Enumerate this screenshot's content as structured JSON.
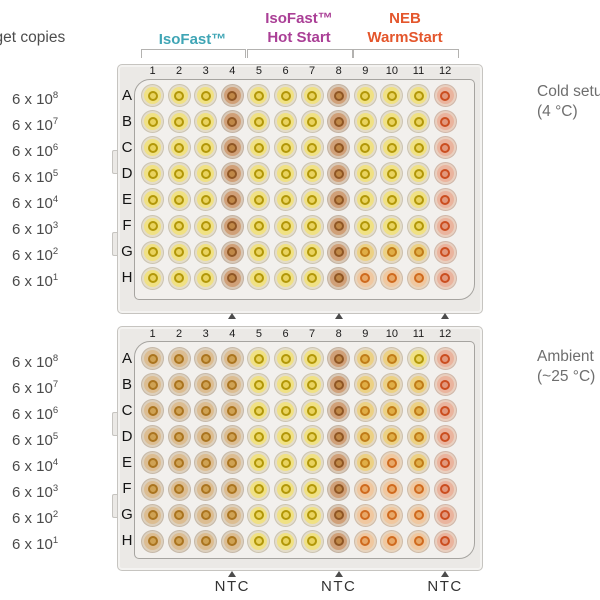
{
  "figure": {
    "target_copies_label": "Target copies",
    "groups": [
      {
        "id": "isofast",
        "label_lines": [
          "IsoFast™"
        ],
        "color": "#3fa5b5"
      },
      {
        "id": "isofast-hot-start",
        "label_lines": [
          "IsoFast™",
          "Hot Start"
        ],
        "color": "#aa3f96"
      },
      {
        "id": "neb-warmstart",
        "label_lines": [
          "NEB",
          "WarmStart"
        ],
        "color": "#e4562c"
      }
    ],
    "dilution_series": {
      "base": "6 x 10",
      "exponents": [
        "8",
        "7",
        "6",
        "5",
        "4",
        "3",
        "2",
        "1"
      ]
    },
    "ntc_label": "NTC",
    "ntc_columns": [
      4,
      8,
      12
    ]
  },
  "plates": [
    {
      "id": "cold-setup",
      "condition": {
        "line1": "Cold setup",
        "line2": "(4 °C)"
      },
      "column_labels": [
        "1",
        "2",
        "3",
        "4",
        "5",
        "6",
        "7",
        "8",
        "9",
        "10",
        "11",
        "12"
      ],
      "row_labels": [
        "A",
        "B",
        "C",
        "D",
        "E",
        "F",
        "G",
        "H"
      ],
      "wells": [
        "YYYBYYYBYYYR",
        "YYYBYYYBYYYR",
        "YYYBYYYBYYYR",
        "YYYBYYYBYYYR",
        "YYYBYYYBYYYR",
        "YYYBYYYBYYYR",
        "YYYBYYYBAAAR",
        "YYYBYYYBOOOR"
      ]
    },
    {
      "id": "ambient",
      "condition": {
        "line1": "Ambient",
        "line2": "(~25 °C)"
      },
      "column_labels": [
        "1",
        "2",
        "3",
        "4",
        "5",
        "6",
        "7",
        "8",
        "9",
        "10",
        "11",
        "12"
      ],
      "row_labels": [
        "A",
        "B",
        "C",
        "D",
        "E",
        "F",
        "G",
        "H"
      ],
      "wells": [
        "TTTTYYYBAAYR",
        "TTTTYYYBAAAR",
        "TTTTYYYBAAAR",
        "TTTTYYYBAAAR",
        "TTTTYYYBAOAR",
        "TTTTYYYBOOOR",
        "TTTTYYYBOOOR",
        "TTTTYYYBOOOR"
      ]
    }
  ],
  "well_colors": {
    "Y": {
      "name": "yellow",
      "disc": "#f0e184",
      "ring": "#b29708",
      "center": "#e9d35e",
      "halo": "#e4ddc9"
    },
    "A": {
      "name": "amber",
      "disc": "#ecd184",
      "ring": "#c07c18",
      "center": "#e0ae46",
      "halo": "#e4d8c2"
    },
    "T": {
      "name": "tan",
      "disc": "#dcbd92",
      "ring": "#aa741f",
      "center": "#cfa254",
      "halo": "#ddd0bd"
    },
    "B": {
      "name": "brown",
      "disc": "#d0a078",
      "ring": "#8f5624",
      "center": "#c08848",
      "halo": "#d9c8b6"
    },
    "O": {
      "name": "orange",
      "disc": "#f0c8a0",
      "ring": "#cf6a1e",
      "center": "#e8a868",
      "halo": "#e8d4bd"
    },
    "R": {
      "name": "red-orange",
      "disc": "#eab49e",
      "ring": "#cb4e20",
      "center": "#e2987c",
      "halo": "#e9cfbf"
    }
  }
}
